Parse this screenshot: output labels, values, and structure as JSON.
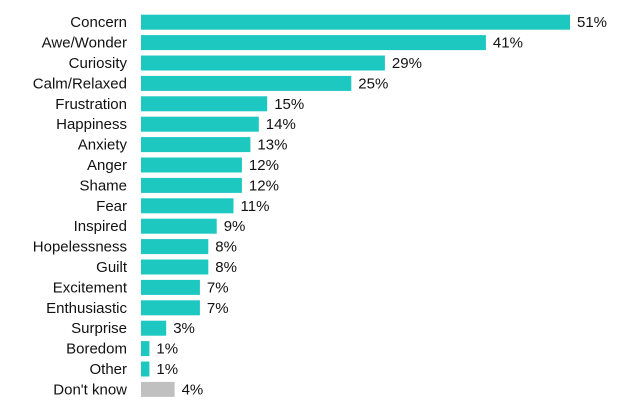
{
  "chart_data": {
    "type": "bar",
    "orientation": "horizontal",
    "categories": [
      "Concern",
      "Awe/Wonder",
      "Curiosity",
      "Calm/Relaxed",
      "Frustration",
      "Happiness",
      "Anxiety",
      "Anger",
      "Shame",
      "Fear",
      "Inspired",
      "Hopelessness",
      "Guilt",
      "Excitement",
      "Enthusiastic",
      "Surprise",
      "Boredom",
      "Other",
      "Don't know"
    ],
    "values": [
      51,
      41,
      29,
      25,
      15,
      14,
      13,
      12,
      12,
      11,
      9,
      8,
      8,
      7,
      7,
      3,
      1,
      1,
      4
    ],
    "data_labels": [
      "51%",
      "41%",
      "29%",
      "25%",
      "15%",
      "14%",
      "13%",
      "12%",
      "12%",
      "11%",
      "9%",
      "8%",
      "8%",
      "7%",
      "7%",
      "3%",
      "1%",
      "1%",
      "4%"
    ],
    "bar_colors": [
      "#1cc8c0",
      "#1cc8c0",
      "#1cc8c0",
      "#1cc8c0",
      "#1cc8c0",
      "#1cc8c0",
      "#1cc8c0",
      "#1cc8c0",
      "#1cc8c0",
      "#1cc8c0",
      "#1cc8c0",
      "#1cc8c0",
      "#1cc8c0",
      "#1cc8c0",
      "#1cc8c0",
      "#1cc8c0",
      "#1cc8c0",
      "#1cc8c0",
      "#c0c0c0"
    ],
    "unit": "%",
    "xlim": [
      0,
      51
    ],
    "grid": false,
    "legend": "none"
  }
}
